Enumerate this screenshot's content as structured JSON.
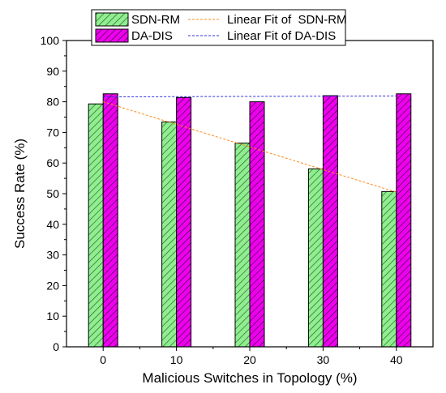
{
  "chart_data": {
    "type": "bar",
    "title": "",
    "xlabel": "Malicious Switches in Topology (%)",
    "ylabel": "Success Rate (%)",
    "categories": [
      "0",
      "10",
      "20",
      "30",
      "40"
    ],
    "x_range": [
      -5,
      45
    ],
    "ylim": [
      0,
      100
    ],
    "yticks": [
      0,
      10,
      20,
      30,
      40,
      50,
      60,
      70,
      80,
      90,
      100
    ],
    "grid": false,
    "legend_position": "top-inside",
    "series": [
      {
        "name": "SDN-RM",
        "values": [
          79.3,
          73.4,
          66.5,
          58.1,
          50.7
        ],
        "color": "#90ee90",
        "hatch": "diagonal"
      },
      {
        "name": "DA-DIS",
        "values": [
          82.6,
          81.4,
          80.0,
          82.0,
          82.6
        ],
        "color": "#ee00ee",
        "hatch": "diagonal"
      }
    ],
    "fits": [
      {
        "name": "Linear Fit of  SDN-RM",
        "color": "#ff8c1a",
        "start": [
          0,
          80.0
        ],
        "end": [
          40,
          50.5
        ]
      },
      {
        "name": "Linear Fit of DA-DIS",
        "color": "#3333dd",
        "start": [
          0,
          81.6
        ],
        "end": [
          40,
          81.9
        ]
      }
    ]
  }
}
